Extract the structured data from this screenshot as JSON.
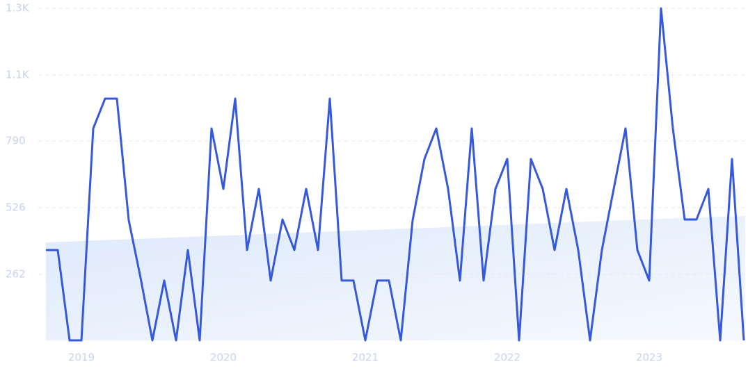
{
  "chart_data": {
    "type": "line",
    "categories": [
      null,
      null,
      null,
      "2019",
      null,
      null,
      null,
      null,
      null,
      null,
      null,
      null,
      null,
      null,
      null,
      "2020",
      null,
      null,
      null,
      null,
      null,
      null,
      null,
      null,
      null,
      null,
      null,
      "2021",
      null,
      null,
      null,
      null,
      null,
      null,
      null,
      null,
      null,
      null,
      null,
      "2022",
      null,
      null,
      null,
      null,
      null,
      null,
      null,
      null,
      null,
      null,
      null,
      "2023",
      null,
      null,
      null,
      null,
      null,
      null,
      null,
      null
    ],
    "series": [
      {
        "color": "#3558dd",
        "values": [
          358,
          358,
          0,
          0,
          840,
          958,
          958,
          476,
          248,
          0,
          237,
          0,
          358,
          0,
          840,
          600,
          958,
          358,
          600,
          237,
          479,
          358,
          600,
          358,
          958,
          237,
          237,
          0,
          237,
          237,
          0,
          476,
          719,
          840,
          600,
          237,
          840,
          237,
          600,
          719,
          0,
          719,
          600,
          358,
          600,
          358,
          0,
          358,
          600,
          840,
          358,
          237,
          1316,
          840,
          479,
          479,
          600,
          0,
          719,
          0
        ]
      }
    ],
    "ylim": [
      0,
      1316
    ],
    "yticks": [
      262,
      526,
      790,
      {
        "value": 1052,
        "label": "1.1K"
      },
      {
        "value": 1316,
        "label": "1.3K"
      }
    ],
    "grid": true
  }
}
